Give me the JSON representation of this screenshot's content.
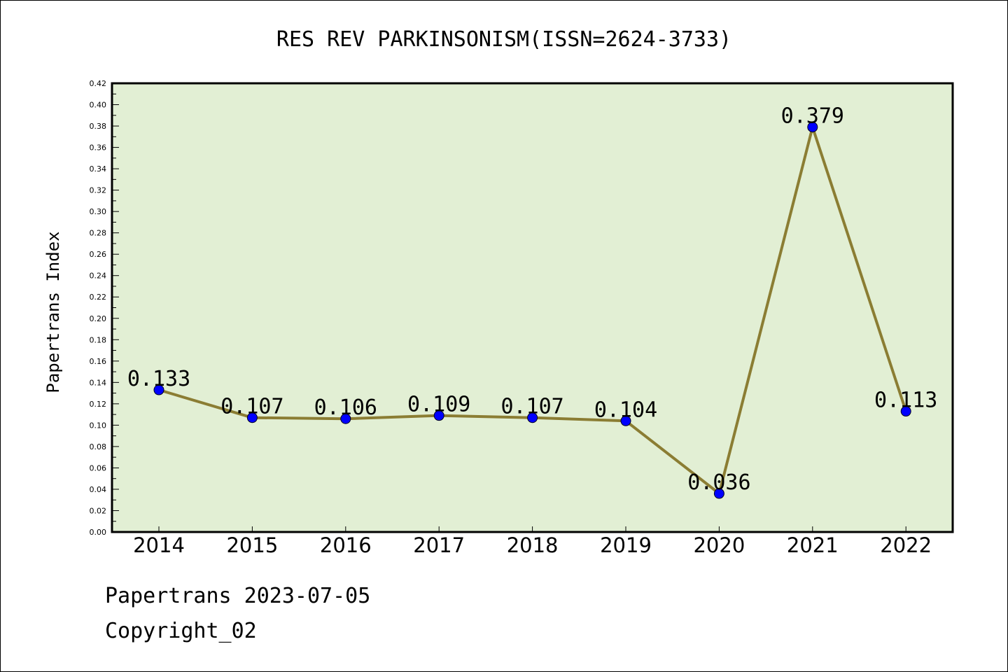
{
  "chart_data": {
    "type": "line",
    "title": "RES REV PARKINSONISM(ISSN=2624-3733)",
    "xlabel": "",
    "ylabel": "Papertrans Index",
    "categories": [
      "2014",
      "2015",
      "2016",
      "2017",
      "2018",
      "2019",
      "2020",
      "2021",
      "2022"
    ],
    "values": [
      0.133,
      0.107,
      0.106,
      0.109,
      0.107,
      0.104,
      0.036,
      0.379,
      0.113
    ],
    "data_labels": [
      "0.133",
      "0.107",
      "0.106",
      "0.109",
      "0.107",
      "0.104",
      "0.036",
      "0.379",
      "0.113"
    ],
    "ylim": [
      0,
      0.42
    ],
    "yticks": [
      "0.00",
      "0.02",
      "0.04",
      "0.06",
      "0.08",
      "0.10",
      "0.12",
      "0.14",
      "0.16",
      "0.18",
      "0.20",
      "0.22",
      "0.24",
      "0.26",
      "0.28",
      "0.30",
      "0.32",
      "0.34",
      "0.36",
      "0.38",
      "0.40",
      "0.42"
    ],
    "grid": false,
    "colors": {
      "plot_background": "#e2efd4",
      "line": "#8b7d33",
      "marker": "#0000ff"
    }
  },
  "footer": {
    "line1": "Papertrans 2023-07-05",
    "line2": "Copyright_02"
  }
}
